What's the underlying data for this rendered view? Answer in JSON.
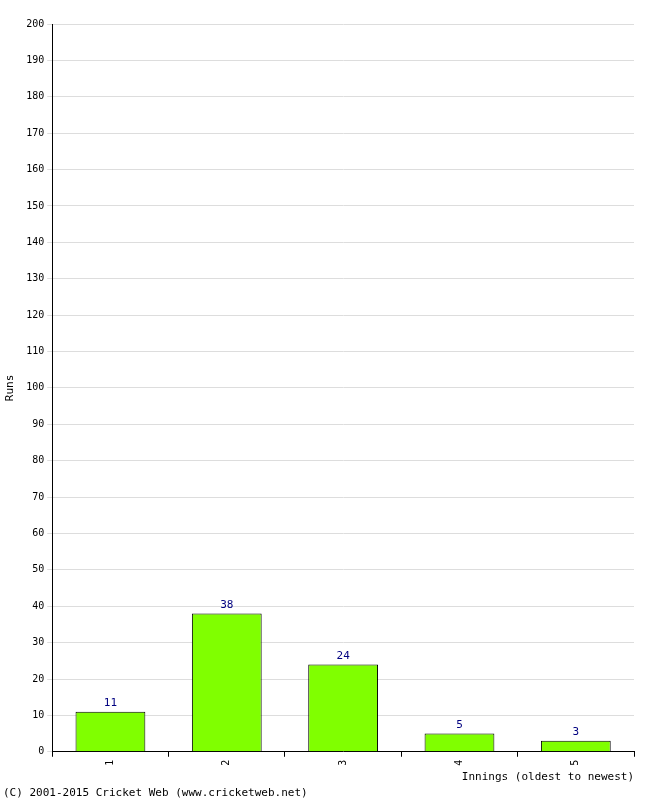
{
  "chart_data": {
    "type": "bar",
    "categories": [
      "1",
      "2",
      "3",
      "4",
      "5"
    ],
    "values": [
      11,
      38,
      24,
      5,
      3
    ],
    "color": "#80ff00",
    "x_label": "Innings (oldest to newest)",
    "y_label": "Runs",
    "annotation": "(C) 2001-2015 Cricket Web (www.cricketweb.net)",
    "ylim": [
      0,
      200
    ],
    "yticks": [
      0,
      10,
      20,
      30,
      40,
      50,
      60,
      70,
      80,
      90,
      100,
      110,
      120,
      130,
      140,
      150,
      160,
      170,
      180,
      190,
      200
    ],
    "grid": true,
    "data_labels": true
  }
}
